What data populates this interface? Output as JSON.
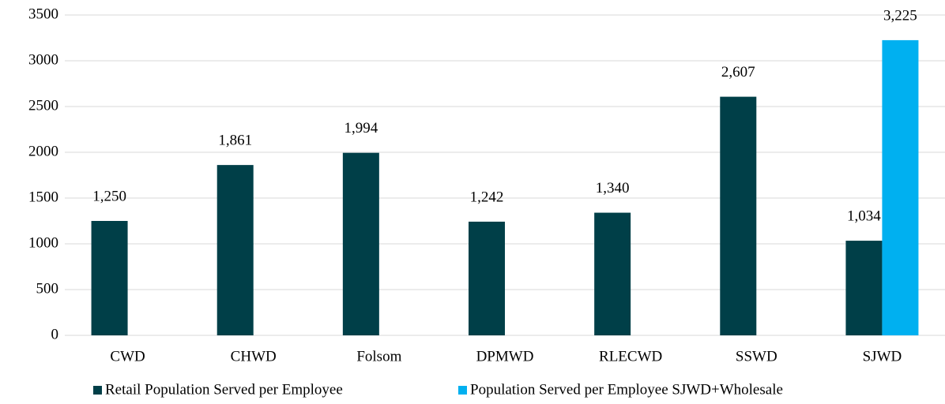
{
  "chart_data": {
    "type": "bar",
    "categories": [
      "CWD",
      "CHWD",
      "Folsom",
      "DPMWD",
      "RLECWD",
      "SSWD",
      "SJWD"
    ],
    "series": [
      {
        "name": "Retail Population Served per Employee",
        "color": "#003f48",
        "values": [
          1250,
          1861,
          1994,
          1242,
          1340,
          2607,
          1034
        ],
        "value_labels": [
          "1,250",
          "1,861",
          "1,994",
          "1,242",
          "1,340",
          "2,607",
          "1,034"
        ]
      },
      {
        "name": "Population Served per Employee SJWD+Wholesale",
        "color": "#00b0f0",
        "values": [
          null,
          null,
          null,
          null,
          null,
          null,
          3225
        ],
        "value_labels": [
          null,
          null,
          null,
          null,
          null,
          null,
          "3,225"
        ]
      }
    ],
    "ylim": [
      0,
      3500
    ],
    "yticks": [
      0,
      500,
      1000,
      1500,
      2000,
      2500,
      3000,
      3500
    ],
    "grid": true,
    "legend": "bottom"
  }
}
